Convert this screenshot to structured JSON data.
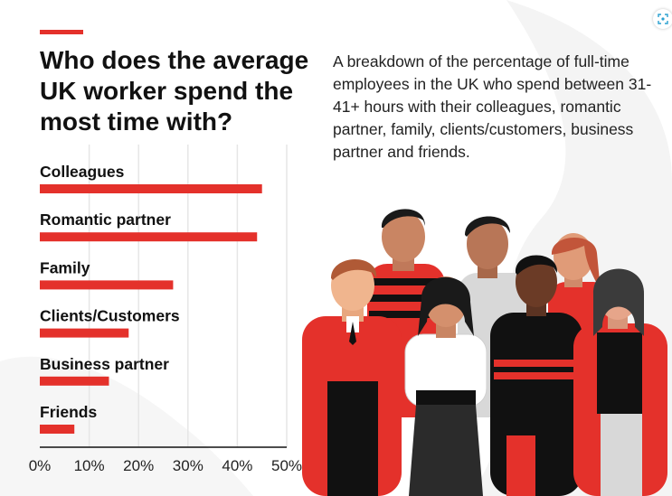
{
  "header": {
    "title": "Who does the average UK worker spend the most time with?",
    "description": "A breakdown of the percentage of full-time employees in the UK who spend between 31-41+ hours with their colleagues, romantic partner, family, clients/customers, business partner and friends."
  },
  "colors": {
    "accent": "#e4312b",
    "text": "#111111",
    "grid": "#e6e6e6"
  },
  "icons": {
    "corner": "scan-icon"
  },
  "chart_data": {
    "type": "bar",
    "orientation": "horizontal",
    "categories": [
      "Colleagues",
      "Romantic partner",
      "Family",
      "Clients/Customers",
      "Business partner",
      "Friends"
    ],
    "values": [
      45,
      44,
      27,
      18,
      14,
      7
    ],
    "xticks": [
      "0%",
      "10%",
      "20%",
      "30%",
      "40%",
      "50%"
    ],
    "xlim": [
      0,
      50
    ],
    "grid": true,
    "legend": "none"
  }
}
